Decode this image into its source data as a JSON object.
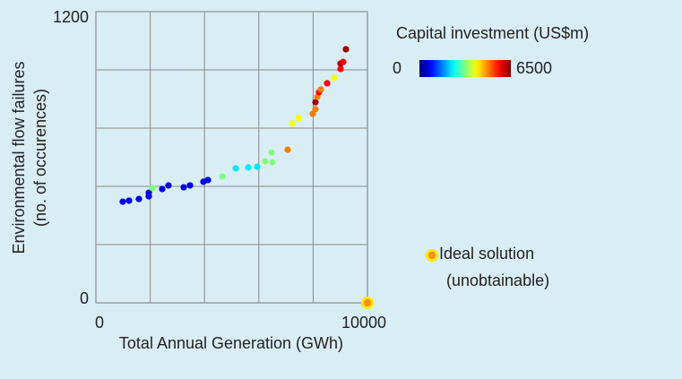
{
  "chart_data": {
    "type": "scatter",
    "xlabel": "Total Annual Generation (GWh)",
    "ylabel": [
      "Environmental flow failures",
      "(no. of occurences)"
    ],
    "xlim": [
      0,
      10000
    ],
    "ylim": [
      0,
      1200
    ],
    "xticks": [
      0,
      10000
    ],
    "yticks": [
      0,
      1200
    ],
    "grid": true,
    "xgrid": [
      2000,
      4000,
      6000,
      8000
    ],
    "ygrid": [
      240,
      480,
      720,
      960
    ],
    "colorbar": {
      "title": "Capital investment (US$m)",
      "clim": [
        0,
        6500
      ],
      "ticks": [
        0,
        6500
      ],
      "colormap": "jet"
    },
    "x": [
      990,
      1221,
      1584,
      1947,
      1947,
      2079,
      2442,
      2673,
      3234,
      3465,
      3960,
      4125,
      4653,
      5149,
      5611,
      5941,
      6238,
      6502,
      6469,
      7063,
      7228,
      7459,
      7987,
      8086,
      8086,
      8152,
      8218,
      8284,
      8515,
      8779,
      9010,
      9010,
      9109,
      9208
    ],
    "y": [
      417,
      421,
      428,
      439,
      454,
      473,
      469,
      484,
      476,
      484,
      499,
      506,
      521,
      554,
      558,
      561,
      583,
      580,
      620,
      631,
      739,
      761,
      779,
      798,
      827,
      849,
      868,
      879,
      905,
      927,
      964,
      986,
      993,
      1045
    ],
    "color_values": [
      650,
      650,
      650,
      650,
      650,
      3250,
      650,
      650,
      650,
      650,
      650,
      650,
      3250,
      2300,
      2300,
      2300,
      3250,
      3250,
      3250,
      4900,
      4000,
      4000,
      4900,
      4900,
      6300,
      4900,
      5700,
      4900,
      5700,
      4000,
      5700,
      6300,
      5700,
      6300
    ],
    "ideal": {
      "label": [
        "Ideal solution",
        "(unobtainable)"
      ],
      "x": 10000,
      "y": 0,
      "color": "#f7941d",
      "halo": "#ffe600"
    }
  }
}
